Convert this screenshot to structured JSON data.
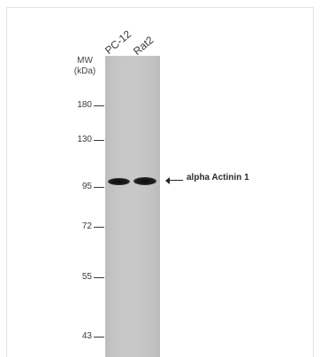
{
  "lanes": [
    "PC-12",
    "Rat2"
  ],
  "mw_header": {
    "line1": "MW",
    "line2": "(kDa)"
  },
  "markers": [
    "180",
    "130",
    "95",
    "72",
    "55",
    "43"
  ],
  "target_label": "alpha Actinin 1",
  "colors": {
    "membrane": "#c6c6c6",
    "band": "#111111",
    "text": "#333333"
  },
  "icons": {
    "arrow": "left-arrow-icon"
  }
}
